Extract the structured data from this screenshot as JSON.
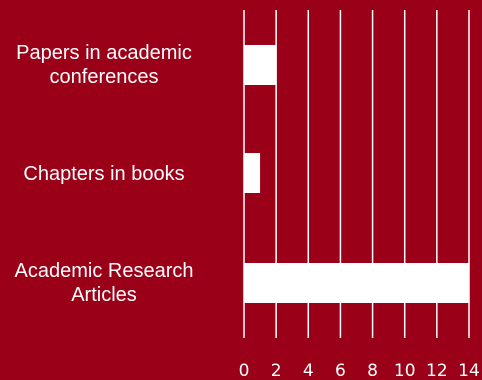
{
  "chart_data": {
    "type": "bar",
    "orientation": "horizontal",
    "categories": [
      "Papers in academic\nconferences",
      "Chapters in books",
      "Academic Research\nArticles"
    ],
    "values": [
      2,
      1,
      14
    ],
    "xlim": [
      0,
      14
    ],
    "xticks": [
      0,
      2,
      4,
      6,
      8,
      10,
      12,
      14
    ],
    "grid": true,
    "title": "",
    "xlabel": "",
    "ylabel": ""
  },
  "colors": {
    "background": "#9b0019",
    "bar": "#ffffff",
    "gridline": "#ffffff",
    "text": "#ffffff"
  }
}
